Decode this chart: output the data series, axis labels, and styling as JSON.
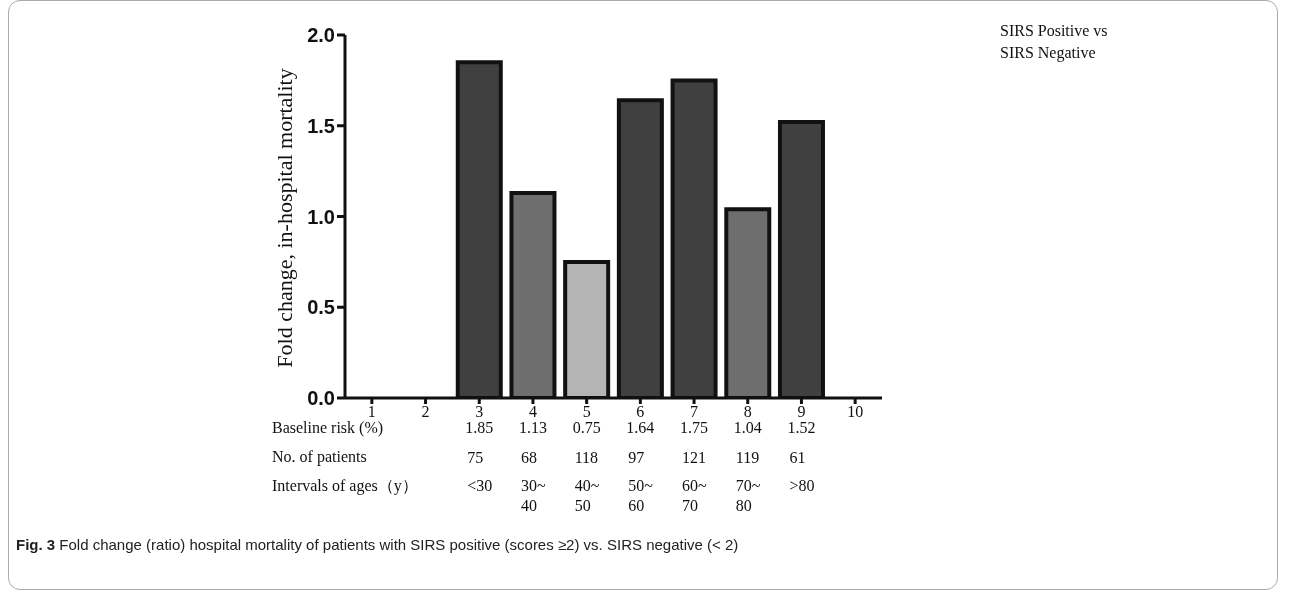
{
  "chart_data": {
    "type": "bar",
    "ylabel": "Fold change, in-hospital mortality",
    "categories": [
      "1",
      "2",
      "3",
      "4",
      "5",
      "6",
      "7",
      "8",
      "9",
      "10"
    ],
    "values": [
      null,
      null,
      1.85,
      1.13,
      0.75,
      1.64,
      1.75,
      1.04,
      1.52,
      null
    ],
    "colors": [
      "#404040",
      "#404040",
      "#404040",
      "#6e6e6e",
      "#b4b4b4",
      "#404040",
      "#404040",
      "#6e6e6e",
      "#404040",
      "#404040"
    ],
    "ylim": [
      0,
      2.0
    ],
    "yticks": [
      {
        "value": 0,
        "label": "0.0"
      },
      {
        "value": 0.5,
        "label": "0.5"
      },
      {
        "value": 1,
        "label": "1.0"
      },
      {
        "value": 1.5,
        "label": "1.5"
      },
      {
        "value": 2,
        "label": "2.0"
      }
    ],
    "grid": false,
    "data_labels": true,
    "annotations": [
      "Fig. 3 Fold change (ratio) hospital mortality of patients with SIRS positive (scores ≥2) vs. SIRS negative (< 2)",
      "SIRS Positive vs SIRS Negative",
      "Baseline risk (%)",
      "No. of patients",
      "75",
      "68",
      "118",
      "97",
      "121",
      "119",
      "61",
      "Intervals of ages（y）",
      "<30",
      "30~ 40",
      "40~ 50",
      "50~ 60",
      "60~ 70",
      "70~ 80",
      ">80"
    ]
  }
}
